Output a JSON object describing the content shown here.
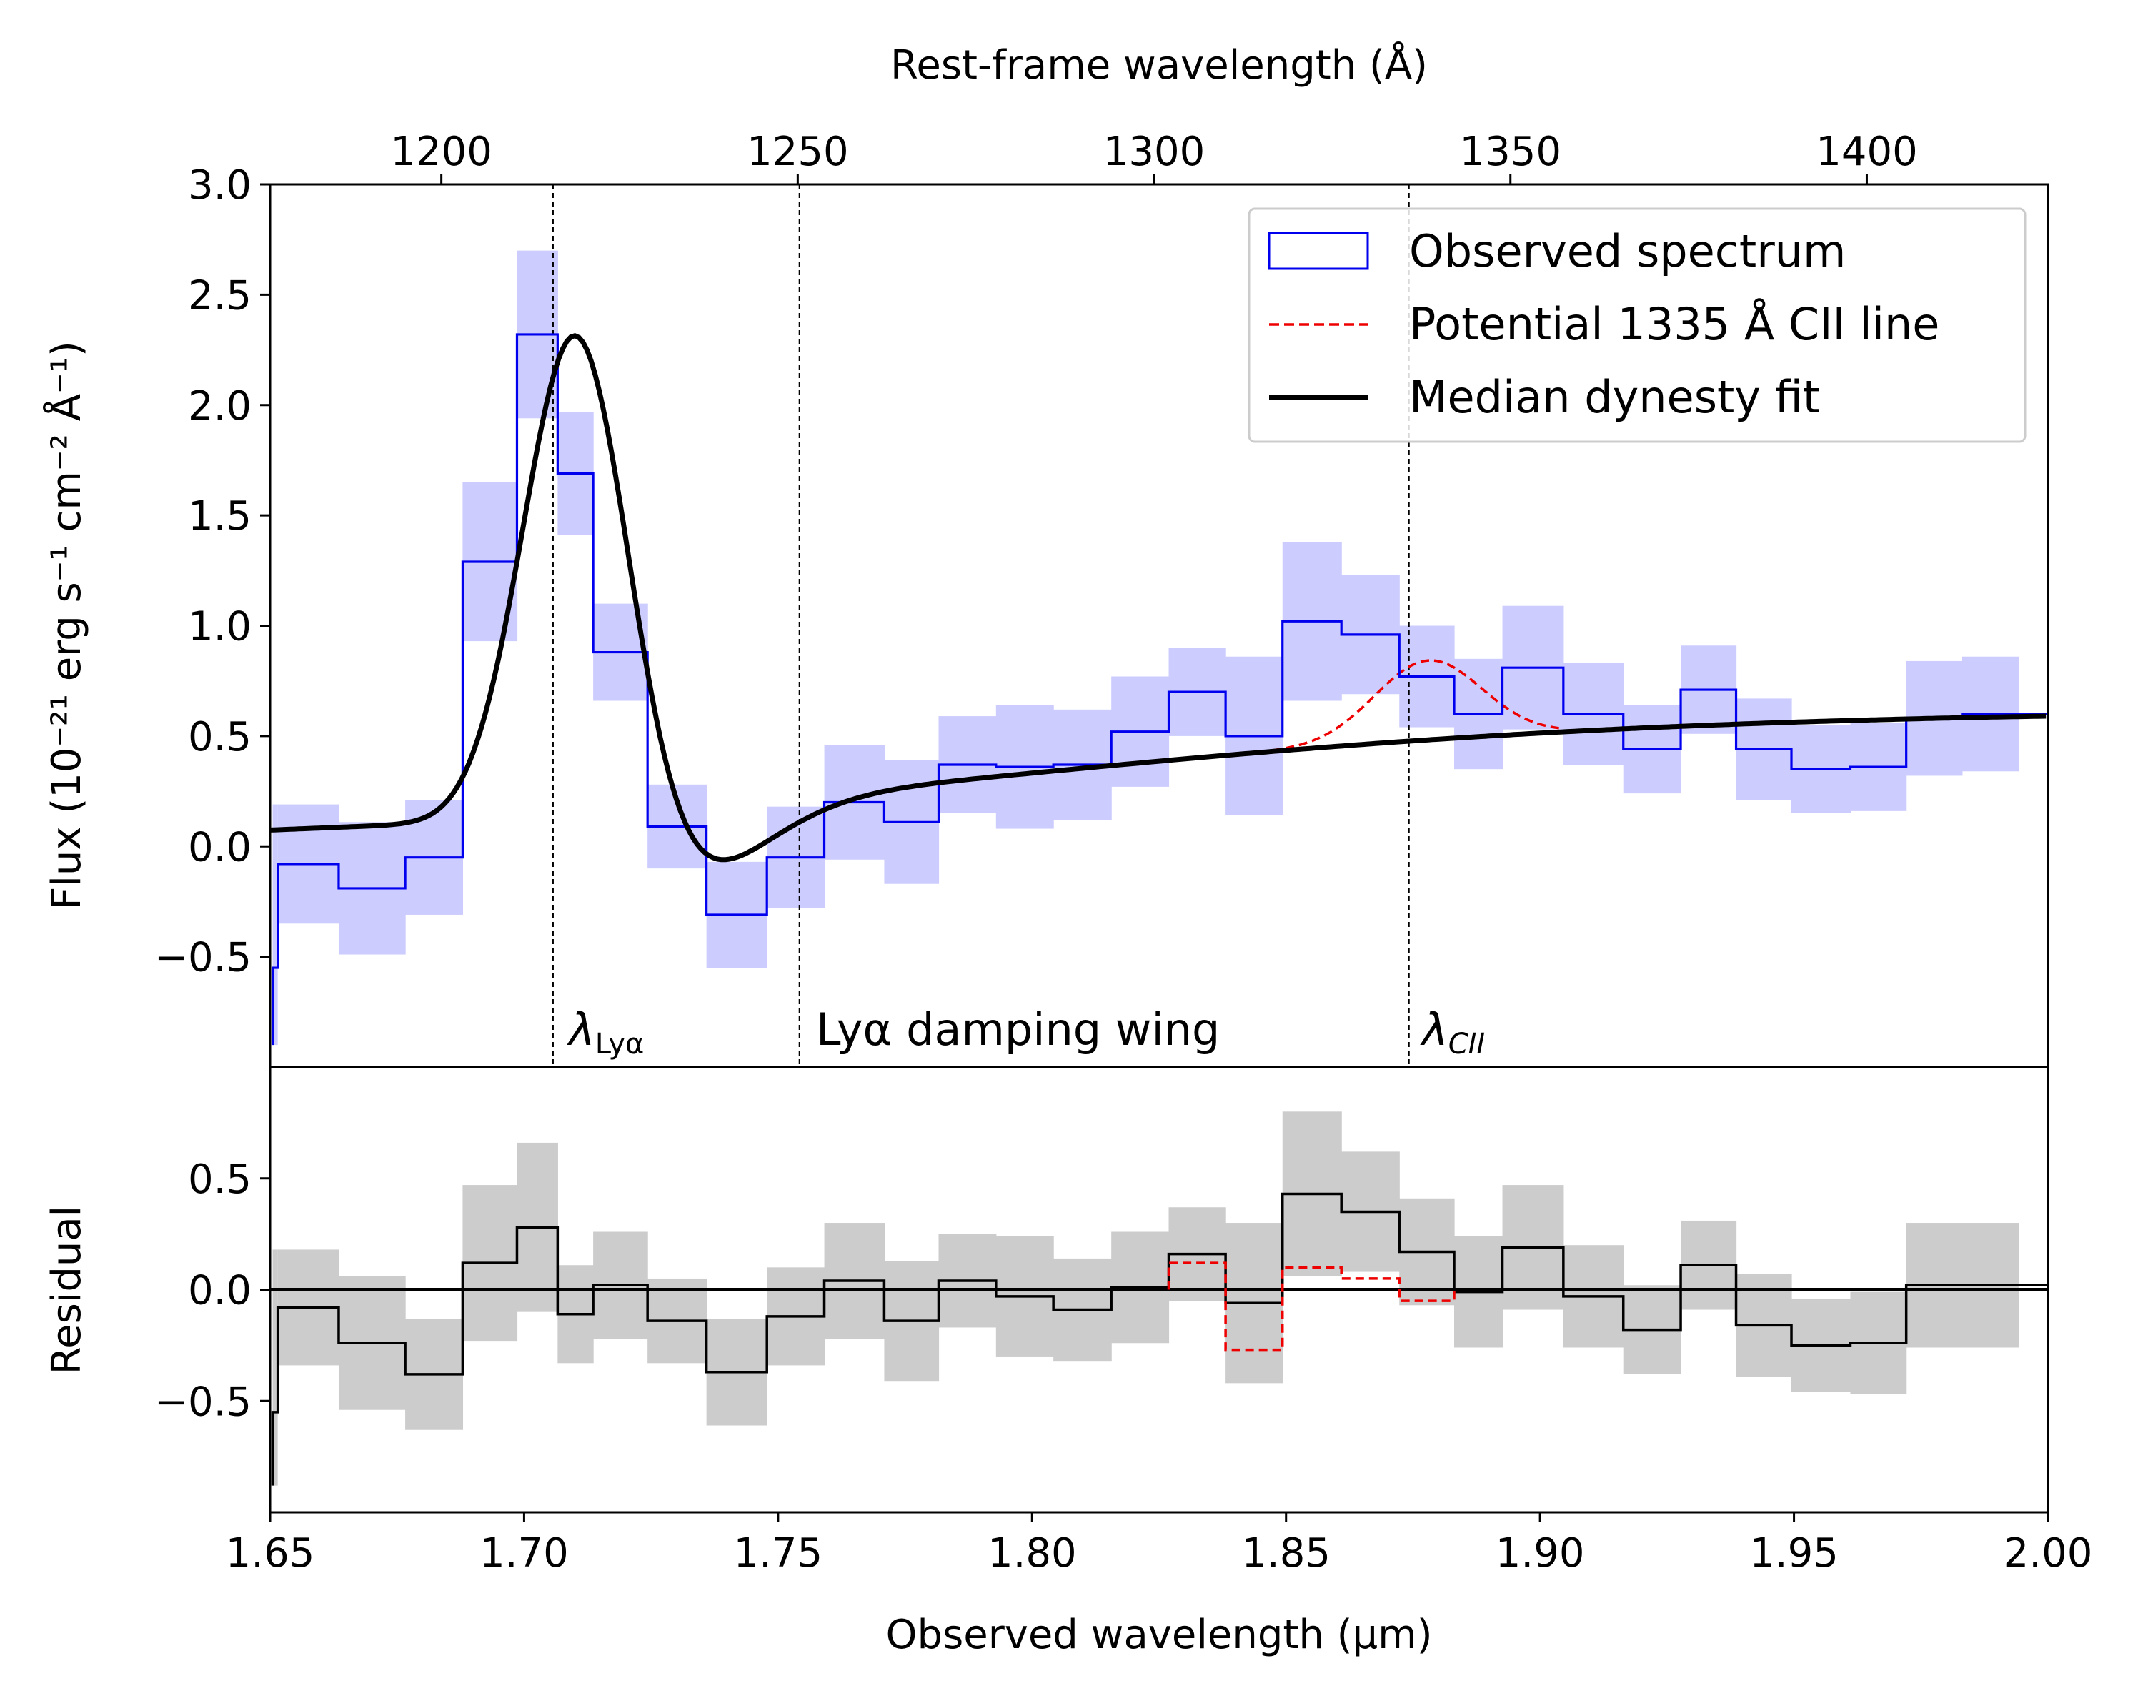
{
  "chart_data": {
    "type": "line",
    "top_axis": {
      "label": "Rest-frame wavelength (Å)",
      "ticks": [
        1200,
        1250,
        1300,
        1350,
        1400
      ],
      "tick_labels": [
        "1200",
        "1250",
        "1300",
        "1350",
        "1400"
      ]
    },
    "x": {
      "label": "Observed wavelength (μm)",
      "range": [
        1.65,
        2.0
      ],
      "ticks": [
        1.65,
        1.7,
        1.75,
        1.8,
        1.85,
        1.9,
        1.95,
        2.0
      ],
      "tick_labels": [
        "1.65",
        "1.70",
        "1.75",
        "1.80",
        "1.85",
        "1.90",
        "1.95",
        "2.00"
      ]
    },
    "main_panel": {
      "ylabel": "Flux (10⁻²¹ erg s⁻¹ cm⁻² Å⁻¹)",
      "ylim": [
        -1.0,
        3.0
      ],
      "y_ticks": [
        -0.5,
        0.0,
        0.5,
        1.0,
        1.5,
        2.0,
        2.5,
        3.0
      ],
      "y_tick_labels": [
        "−0.5",
        "0.0",
        "0.5",
        "1.0",
        "1.5",
        "2.0",
        "2.5",
        "3.0"
      ],
      "bin_edges": [
        1.6515,
        1.6635,
        1.6766,
        1.6879,
        1.6986,
        1.7066,
        1.7136,
        1.7243,
        1.7359,
        1.7478,
        1.7591,
        1.7709,
        1.7816,
        1.7929,
        1.8042,
        1.8156,
        1.8269,
        1.8381,
        1.8493,
        1.8609,
        1.8723,
        1.8831,
        1.8926,
        1.9046,
        1.9164,
        1.9277,
        1.9386,
        1.9495,
        1.9611,
        1.9721,
        1.9831,
        1.9942
      ],
      "observed_flux": [
        -0.08,
        -0.19,
        -0.05,
        1.29,
        2.32,
        1.69,
        0.88,
        0.09,
        -0.31,
        -0.05,
        0.2,
        0.11,
        0.37,
        0.36,
        0.37,
        0.52,
        0.7,
        0.5,
        1.02,
        0.96,
        0.77,
        0.6,
        0.81,
        0.6,
        0.44,
        0.71,
        0.44,
        0.35,
        0.36,
        0.58,
        0.6
      ],
      "flux_error": [
        0.27,
        0.3,
        0.26,
        0.36,
        0.38,
        0.28,
        0.22,
        0.19,
        0.24,
        0.23,
        0.26,
        0.28,
        0.22,
        0.28,
        0.25,
        0.25,
        0.2,
        0.36,
        0.36,
        0.27,
        0.23,
        0.25,
        0.28,
        0.23,
        0.2,
        0.2,
        0.23,
        0.2,
        0.2,
        0.26,
        0.26
      ],
      "edge_segment": {
        "x": 1.6505,
        "y_top": -0.55,
        "err_low": -0.9
      },
      "vlines": [
        {
          "x": 1.7057,
          "label_main": "λ",
          "label_sub": "Lyα"
        },
        {
          "x": 1.7542,
          "label_main": "Lyα damping wing",
          "label_sub": ""
        },
        {
          "x": 1.8742,
          "label_main": "λ",
          "label_sub": "CII"
        }
      ],
      "dynesty_fit": {
        "continuum_edge": 1.79,
        "continuum_width": 0.07,
        "continuum_level": 0.62,
        "lya_center": 1.7105,
        "lya_amp": 2.45,
        "lya_sigma": 0.0105,
        "neg_center": 1.726,
        "neg_amp": 0.42,
        "neg_sigma": 0.018
      },
      "cii_line": {
        "center": 1.878,
        "amp": 0.36,
        "sigma": 0.0105,
        "x_range": [
          1.842,
          1.905
        ]
      }
    },
    "residual_panel": {
      "ylabel": "Residual",
      "ylim": [
        -1.0,
        1.0
      ],
      "y_ticks": [
        -0.5,
        0.0,
        0.5
      ],
      "y_tick_labels": [
        "−0.5",
        "0.0",
        "0.5"
      ],
      "residual": [
        -0.08,
        -0.24,
        -0.38,
        0.12,
        0.28,
        -0.11,
        0.02,
        -0.14,
        -0.37,
        -0.12,
        0.04,
        -0.14,
        0.04,
        -0.03,
        -0.09,
        0.01,
        0.16,
        -0.06,
        0.43,
        0.35,
        0.17,
        -0.01,
        0.19,
        -0.03,
        -0.18,
        0.11,
        -0.16,
        -0.25,
        -0.24,
        0.02,
        0.02
      ],
      "residual_error": [
        0.26,
        0.3,
        0.25,
        0.35,
        0.38,
        0.22,
        0.24,
        0.19,
        0.24,
        0.22,
        0.26,
        0.27,
        0.21,
        0.27,
        0.23,
        0.25,
        0.21,
        0.36,
        0.37,
        0.27,
        0.24,
        0.25,
        0.28,
        0.23,
        0.2,
        0.2,
        0.23,
        0.21,
        0.23,
        0.28,
        0.28
      ],
      "cii_residual": {
        "start_bin": 16,
        "values": [
          0.12,
          -0.27,
          0.1,
          0.05,
          -0.05
        ]
      },
      "edge_segment": {
        "x": 1.6505,
        "y_top": -0.55,
        "err_low": -0.88
      }
    },
    "legend": {
      "position": "top-right",
      "entries": [
        {
          "label": "Observed spectrum",
          "style": "step-box",
          "color": "#0000ee"
        },
        {
          "label": "Potential 1335 Å CII line",
          "style": "dashed",
          "color": "#ee0000"
        },
        {
          "label": "Median dynesty fit",
          "style": "solid",
          "color": "#000000"
        }
      ]
    },
    "colors": {
      "observed": "#0000ee",
      "observed_band": "#ccccff",
      "residual_band": "#cccccc",
      "cii": "#ee0000",
      "fit": "#000000"
    }
  }
}
